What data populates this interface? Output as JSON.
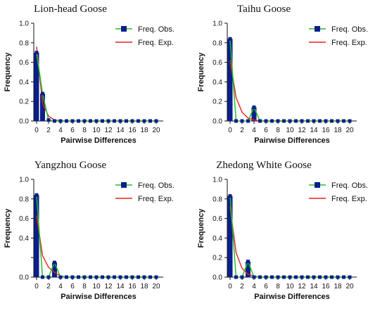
{
  "colors": {
    "bar": "#0a1f8c",
    "observed": "#22c02a",
    "expected": "#e8201a",
    "axis": "#111111"
  },
  "chart_data": [
    {
      "type": "bar",
      "title": "Lion-head Goose",
      "xlabel": "Pairwise Differences",
      "ylabel": "Frequency",
      "xlim": [
        0,
        20
      ],
      "ylim": [
        0,
        1.0
      ],
      "xticks": [
        0,
        2,
        4,
        6,
        8,
        10,
        12,
        14,
        16,
        18,
        20
      ],
      "yticks": [
        0.0,
        0.2,
        0.4,
        0.6,
        0.8,
        1.0
      ],
      "ytick_labels": [
        "0.0",
        "0.2",
        "0.4",
        "0.6",
        "0.8",
        "1.0"
      ],
      "legend": [
        "Freq. Obs.",
        "Freq. Exp."
      ],
      "legend_position": "top-right",
      "bars": {
        "x": [
          0,
          1
        ],
        "values": [
          0.7,
          0.28
        ]
      },
      "series": [
        {
          "name": "Freq. Obs.",
          "x": [
            0,
            1,
            2,
            3,
            4,
            5,
            6,
            7,
            8,
            9,
            10,
            11,
            12,
            13,
            14,
            15,
            16,
            17,
            18,
            19,
            20
          ],
          "values": [
            0.7,
            0.28,
            0.01,
            0.0,
            0.0,
            0.0,
            0.0,
            0.0,
            0.0,
            0.0,
            0.0,
            0.0,
            0.0,
            0.0,
            0.0,
            0.0,
            0.0,
            0.0,
            0.0,
            0.0,
            0.0
          ]
        },
        {
          "name": "Freq. Exp.",
          "x": [
            0,
            1,
            2,
            3,
            4,
            5,
            6,
            7,
            8,
            9,
            10,
            11,
            12,
            13,
            14,
            15,
            16,
            17,
            18,
            19,
            20
          ],
          "values": [
            0.76,
            0.18,
            0.05,
            0.01,
            0.0,
            0.0,
            0.0,
            0.0,
            0.0,
            0.0,
            0.0,
            0.0,
            0.0,
            0.0,
            0.0,
            0.0,
            0.0,
            0.0,
            0.0,
            0.0,
            0.0
          ]
        }
      ]
    },
    {
      "type": "bar",
      "title": "Taihu Goose",
      "xlabel": "Pairwise Differences",
      "ylabel": "Frequency",
      "xlim": [
        0,
        20
      ],
      "ylim": [
        0,
        1.0
      ],
      "xticks": [
        0,
        2,
        4,
        6,
        8,
        10,
        12,
        14,
        16,
        18,
        20
      ],
      "yticks": [
        0.0,
        0.2,
        0.4,
        0.6,
        0.8,
        1.0
      ],
      "ytick_labels": [
        "0.0",
        "0.2",
        "0.4",
        "0.6",
        "0.8",
        "1.0"
      ],
      "legend": [
        "Freq. Obs.",
        "Freq. Exp."
      ],
      "legend_position": "top-right",
      "bars": {
        "x": [
          0,
          4
        ],
        "values": [
          0.84,
          0.14
        ]
      },
      "series": [
        {
          "name": "Freq. Obs.",
          "x": [
            0,
            1,
            2,
            3,
            4,
            5,
            6,
            7,
            8,
            9,
            10,
            11,
            12,
            13,
            14,
            15,
            16,
            17,
            18,
            19,
            20
          ],
          "values": [
            0.84,
            0.0,
            0.0,
            0.0,
            0.14,
            0.0,
            0.0,
            0.0,
            0.0,
            0.0,
            0.0,
            0.0,
            0.0,
            0.0,
            0.0,
            0.0,
            0.0,
            0.0,
            0.0,
            0.0,
            0.0
          ]
        },
        {
          "name": "Freq. Exp.",
          "x": [
            0,
            1,
            2,
            3,
            4,
            5,
            6,
            7,
            8,
            9,
            10,
            11,
            12,
            13,
            14,
            15,
            16,
            17,
            18,
            19,
            20
          ],
          "values": [
            0.62,
            0.24,
            0.09,
            0.03,
            0.01,
            0.0,
            0.0,
            0.0,
            0.0,
            0.0,
            0.0,
            0.0,
            0.0,
            0.0,
            0.0,
            0.0,
            0.0,
            0.0,
            0.0,
            0.0,
            0.0
          ]
        }
      ]
    },
    {
      "type": "bar",
      "title": "Yangzhou Goose",
      "xlabel": "Pairwise Differences",
      "ylabel": "Frequency",
      "xlim": [
        0,
        20
      ],
      "ylim": [
        0,
        1.0
      ],
      "xticks": [
        0,
        2,
        4,
        6,
        8,
        10,
        12,
        14,
        16,
        18,
        20
      ],
      "yticks": [
        0.0,
        0.2,
        0.4,
        0.6,
        0.8,
        1.0
      ],
      "ytick_labels": [
        "0.0",
        "",
        "0.4",
        "0.6",
        "0.8",
        "1.0"
      ],
      "legend": [
        "Freq. Obs.",
        "Freq. Exp."
      ],
      "legend_position": "top-right",
      "bars": {
        "x": [
          0,
          3
        ],
        "values": [
          0.84,
          0.15
        ]
      },
      "series": [
        {
          "name": "Freq. Obs.",
          "x": [
            0,
            1,
            2,
            3,
            4,
            5,
            6,
            7,
            8,
            9,
            10,
            11,
            12,
            13,
            14,
            15,
            16,
            17,
            18,
            19,
            20
          ],
          "values": [
            0.84,
            0.0,
            0.0,
            0.15,
            0.0,
            0.0,
            0.0,
            0.0,
            0.0,
            0.0,
            0.0,
            0.0,
            0.0,
            0.0,
            0.0,
            0.0,
            0.0,
            0.0,
            0.0,
            0.0,
            0.0
          ]
        },
        {
          "name": "Freq. Exp.",
          "x": [
            0,
            1,
            2,
            3,
            4,
            5,
            6,
            7,
            8,
            9,
            10,
            11,
            12,
            13,
            14,
            15,
            16,
            17,
            18,
            19,
            20
          ],
          "values": [
            0.63,
            0.22,
            0.1,
            0.05,
            0.01,
            0.0,
            0.0,
            0.0,
            0.0,
            0.0,
            0.0,
            0.0,
            0.0,
            0.0,
            0.0,
            0.0,
            0.0,
            0.0,
            0.0,
            0.0,
            0.0
          ]
        }
      ]
    },
    {
      "type": "bar",
      "title": "Zhedong White Goose",
      "xlabel": "Pairwise Differences",
      "ylabel": "Frequency",
      "xlim": [
        0,
        20
      ],
      "ylim": [
        0,
        1.0
      ],
      "xticks": [
        0,
        2,
        4,
        6,
        8,
        10,
        12,
        14,
        16,
        18,
        20
      ],
      "yticks": [
        0.0,
        0.2,
        0.4,
        0.6,
        0.8,
        1.0
      ],
      "ytick_labels": [
        "0.0",
        "0.2",
        "0.4",
        "0.6",
        "0.8",
        "1.0"
      ],
      "legend": [
        "Freq. Obs.",
        "Freq. Exp."
      ],
      "legend_position": "top-right",
      "bars": {
        "x": [
          0,
          3
        ],
        "values": [
          0.83,
          0.16
        ]
      },
      "series": [
        {
          "name": "Freq. Obs.",
          "x": [
            0,
            1,
            2,
            3,
            4,
            5,
            6,
            7,
            8,
            9,
            10,
            11,
            12,
            13,
            14,
            15,
            16,
            17,
            18,
            19,
            20
          ],
          "values": [
            0.83,
            0.0,
            0.0,
            0.16,
            0.0,
            0.0,
            0.0,
            0.0,
            0.0,
            0.0,
            0.0,
            0.0,
            0.0,
            0.0,
            0.0,
            0.0,
            0.0,
            0.0,
            0.0,
            0.0,
            0.0
          ]
        },
        {
          "name": "Freq. Exp.",
          "x": [
            0,
            1,
            2,
            3,
            4,
            5,
            6,
            7,
            8,
            9,
            10,
            11,
            12,
            13,
            14,
            15,
            16,
            17,
            18,
            19,
            20
          ],
          "values": [
            0.72,
            0.25,
            0.09,
            0.03,
            0.01,
            0.0,
            0.0,
            0.0,
            0.0,
            0.0,
            0.0,
            0.0,
            0.0,
            0.0,
            0.0,
            0.0,
            0.0,
            0.0,
            0.0,
            0.0,
            0.0
          ]
        }
      ]
    }
  ]
}
